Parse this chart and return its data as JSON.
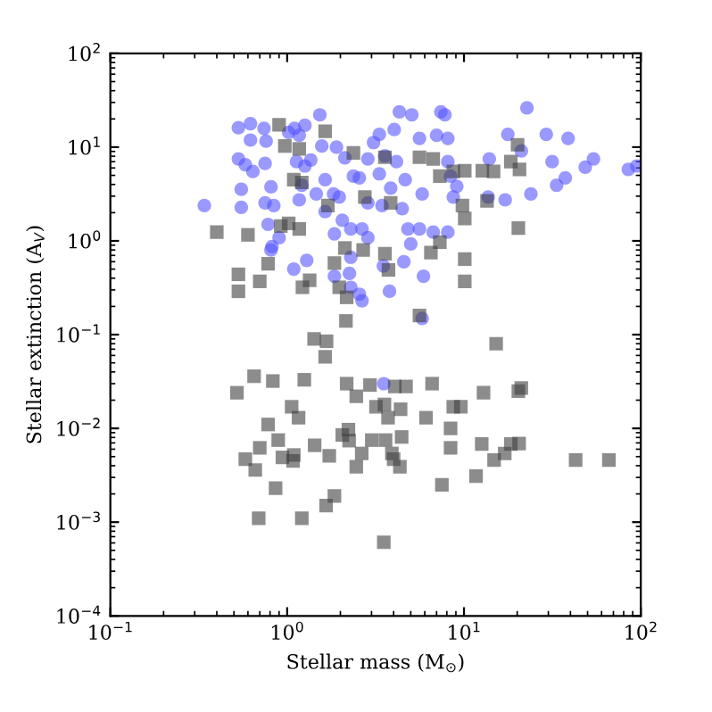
{
  "chart_data": {
    "type": "scatter",
    "xlabel": "Stellar mass (M$_{⊙}$)",
    "ylabel": "Stellar extinction (A$_{V}$)",
    "log": "xy",
    "grid": false,
    "xlim": [
      0.1,
      100
    ],
    "ylim": [
      0.0001,
      100
    ],
    "xticks": [
      {
        "value": 0.1,
        "label": "10$^{−1}$"
      },
      {
        "value": 1,
        "label": "10$^{0}$"
      },
      {
        "value": 10,
        "label": "10$^{1}$"
      },
      {
        "value": 100,
        "label": "10$^{2}$"
      }
    ],
    "yticks": [
      {
        "value": 0.0001,
        "label": "10$^{−4}$"
      },
      {
        "value": 0.001,
        "label": "10$^{−3}$"
      },
      {
        "value": 0.01,
        "label": "10$^{−2}$"
      },
      {
        "value": 0.1,
        "label": "10$^{−1}$"
      },
      {
        "value": 1,
        "label": "10$^{0}$"
      },
      {
        "value": 10,
        "label": "10$^{1}$"
      },
      {
        "value": 100,
        "label": "10$^{2}$"
      }
    ],
    "series": [
      {
        "color": "#5555ff",
        "marker": "circle",
        "x": [
          0.34,
          0.53,
          0.62,
          0.74,
          0.62,
          0.76,
          0.53,
          0.58,
          0.75,
          0.64,
          0.55,
          0.81,
          0.55,
          0.75,
          0.84,
          0.78,
          0.82,
          0.9,
          1.1,
          1.26,
          1.53,
          1.02,
          1.17,
          1.13,
          1.26,
          1.36,
          1.21,
          1.17,
          1.46,
          1.64,
          1.57,
          1.9,
          2.12,
          2.37,
          2.56,
          1.83,
          1.97,
          1.64,
          2.05,
          1.85,
          2.29,
          2.65,
          2.86,
          3.32,
          4.03,
          4.31,
          5.07,
          3.08,
          4.15,
          3.57,
          2.86,
          3.32,
          3.85,
          2.86,
          3.44,
          4.65,
          5.8,
          4.47,
          4.82,
          5.6,
          5.0,
          5.6,
          7.0,
          7.4,
          7.8,
          8.1,
          8.1,
          8.4,
          9.1,
          6.7,
          8.1,
          8.7,
          13.9,
          13.7,
          17.1,
          17.7,
          21.1,
          22.7,
          23.9,
          29.2,
          31.5,
          38.8,
          33.4,
          37.4,
          48.5,
          54,
          85,
          95,
          0.81,
          1.09,
          1.29,
          1.85,
          2.29,
          2.25,
          2.29,
          2.56,
          2.65,
          3.5,
          3.79,
          4.57,
          5.9,
          5.8,
          3.52
        ],
        "values": [
          2.38,
          16.1,
          17.8,
          15.9,
          11.9,
          11.6,
          7.5,
          6.5,
          6.7,
          5.5,
          3.55,
          3.77,
          2.28,
          2.55,
          2.38,
          1.5,
          0.87,
          1.08,
          15.9,
          17.1,
          22.1,
          14.4,
          13.4,
          7.0,
          6.3,
          7.3,
          3.93,
          2.74,
          3.17,
          4.5,
          10.3,
          10.0,
          7.7,
          4.9,
          4.7,
          3.17,
          2.94,
          2.06,
          1.66,
          1.19,
          1.34,
          1.34,
          1.08,
          13.7,
          15.4,
          23.8,
          22.1,
          11.2,
          7.0,
          8.1,
          7.5,
          5.2,
          3.66,
          2.55,
          2.38,
          4.5,
          3.17,
          2.21,
          1.34,
          1.34,
          0.93,
          12.4,
          13.4,
          23.8,
          22.1,
          12.4,
          7.0,
          4.9,
          3.82,
          1.24,
          1.24,
          2.94,
          7.5,
          2.94,
          2.74,
          13.7,
          9.1,
          26.2,
          3.17,
          13.7,
          7.0,
          12.4,
          3.93,
          4.7,
          6.1,
          7.5,
          5.8,
          6.3,
          0.8,
          0.5,
          0.62,
          0.42,
          0.67,
          0.45,
          0.32,
          0.27,
          0.23,
          0.54,
          0.29,
          0.6,
          0.42,
          0.149,
          0.03
        ]
      },
      {
        "color": "#404040",
        "marker": "square",
        "x": [
          0.53,
          0.53,
          0.7,
          0.78,
          1.22,
          1.34,
          1.85,
          1.97,
          2.17,
          2.69,
          3.57,
          3.74,
          6.5,
          10.1,
          10.1,
          2.15,
          5.6,
          1.42,
          1.67,
          1.64,
          15.2,
          0.65,
          0.83,
          1.25,
          0.52,
          2.17,
          2.94,
          2.46,
          4.06,
          4.7,
          6.6,
          12.9,
          20.3,
          21.1,
          1.06,
          1.16,
          3.18,
          3.55,
          3.72,
          4.38,
          8.7,
          9.6,
          6.1,
          0.78,
          0.89,
          0.7,
          1.43,
          2.05,
          2.22,
          2.24,
          3.01,
          3.6,
          4.44,
          8.4,
          8.4,
          12.6,
          18.4,
          20.5,
          0.58,
          0.66,
          0.94,
          1.09,
          1.08,
          1.73,
          2.64,
          2.46,
          3.91,
          4.0,
          4.34,
          7.5,
          11.7,
          14.8,
          17.0,
          42.8,
          66,
          0.86,
          1.66,
          1.85,
          0.69,
          1.21,
          3.52,
          0.9,
          0.97,
          1.17,
          1.64,
          2.37,
          1.09,
          1.21,
          1.7,
          2.75,
          3.57,
          3.85,
          5.6,
          6.7,
          7.3,
          8.7,
          10.1,
          12.7,
          14.7,
          20.6,
          20.1,
          18.4,
          9.8,
          10.1,
          13.5,
          20.3,
          0.4,
          0.6,
          0.92,
          1.02,
          1.17,
          2.12,
          7.3
        ],
        "values": [
          0.44,
          0.29,
          0.37,
          0.57,
          0.32,
          0.38,
          0.58,
          0.32,
          0.25,
          0.8,
          0.73,
          0.49,
          0.75,
          0.64,
          0.37,
          0.14,
          0.16,
          0.09,
          0.085,
          0.058,
          0.08,
          0.036,
          0.032,
          0.033,
          0.024,
          0.03,
          0.029,
          0.022,
          0.028,
          0.028,
          0.03,
          0.024,
          0.025,
          0.027,
          0.017,
          0.013,
          0.017,
          0.018,
          0.013,
          0.016,
          0.017,
          0.017,
          0.013,
          0.011,
          0.0075,
          0.0062,
          0.0066,
          0.0085,
          0.0097,
          0.0074,
          0.0075,
          0.0075,
          0.0081,
          0.01,
          0.0062,
          0.0068,
          0.0068,
          0.0069,
          0.0047,
          0.0036,
          0.0049,
          0.0052,
          0.0045,
          0.0051,
          0.0054,
          0.0039,
          0.0054,
          0.0047,
          0.0039,
          0.0025,
          0.0031,
          0.0046,
          0.0054,
          0.0046,
          0.0046,
          0.0023,
          0.0015,
          0.0019,
          0.0011,
          0.0011,
          0.00061,
          17.3,
          10.3,
          9.6,
          14.8,
          8.7,
          4.5,
          4.2,
          2.38,
          2.94,
          7.8,
          2.55,
          7.8,
          7.5,
          4.9,
          5.5,
          5.6,
          5.6,
          5.5,
          5.8,
          10.6,
          7.0,
          2.38,
          1.73,
          2.67,
          1.37,
          1.24,
          1.16,
          1.44,
          1.54,
          1.34,
          0.84,
          0.97
        ]
      }
    ]
  }
}
